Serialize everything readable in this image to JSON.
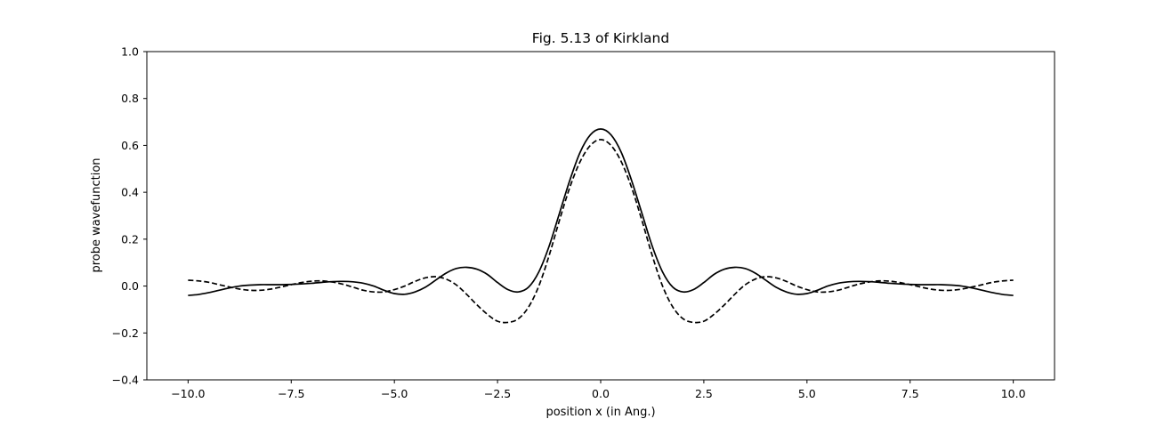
{
  "chart_data": {
    "type": "line",
    "title": "Fig. 5.13 of Kirkland",
    "xlabel": "position x (in Ang.)",
    "ylabel": "probe wavefunction",
    "xlim": [
      -11,
      11
    ],
    "ylim": [
      -0.4,
      1.0
    ],
    "xticks": [
      -10.0,
      -7.5,
      -5.0,
      -2.5,
      0.0,
      2.5,
      5.0,
      7.5,
      10.0
    ],
    "xtick_labels": [
      "−10.0",
      "−7.5",
      "−5.0",
      "−2.5",
      "0.0",
      "2.5",
      "5.0",
      "7.5",
      "10.0"
    ],
    "yticks": [
      -0.4,
      -0.2,
      0.0,
      0.2,
      0.4,
      0.6,
      0.8,
      1.0
    ],
    "ytick_labels": [
      "−0.4",
      "−0.2",
      "0.0",
      "0.2",
      "0.4",
      "0.6",
      "0.8",
      "1.0"
    ],
    "grid": false,
    "legend": "none",
    "series": [
      {
        "style": "solid",
        "color": "#000000",
        "x": [
          0,
          0.25,
          0.5,
          0.75,
          1.0,
          1.25,
          1.5,
          1.75,
          2.0,
          2.25,
          2.5,
          2.75,
          3.0,
          3.25,
          3.5,
          3.75,
          4.0,
          4.25,
          4.5,
          4.75,
          5.0,
          5.25,
          5.5,
          5.75,
          6.0,
          6.25,
          6.5,
          6.75,
          7.0,
          7.25,
          7.5,
          7.75,
          8.0,
          8.25,
          8.5,
          8.75,
          9.0,
          9.25,
          9.5,
          9.75,
          10.0
        ],
        "y": [
          0.67,
          0.645,
          0.57,
          0.45,
          0.31,
          0.17,
          0.06,
          -0.005,
          -0.025,
          -0.015,
          0.015,
          0.05,
          0.072,
          0.08,
          0.075,
          0.055,
          0.025,
          -0.005,
          -0.025,
          -0.035,
          -0.032,
          -0.018,
          0.0,
          0.012,
          0.018,
          0.02,
          0.019,
          0.016,
          0.012,
          0.009,
          0.007,
          0.006,
          0.006,
          0.006,
          0.004,
          0.0,
          -0.008,
          -0.018,
          -0.028,
          -0.036,
          -0.04
        ]
      },
      {
        "style": "dashed",
        "color": "#000000",
        "x": [
          0,
          0.25,
          0.5,
          0.75,
          1.0,
          1.25,
          1.5,
          1.75,
          2.0,
          2.25,
          2.5,
          2.75,
          3.0,
          3.25,
          3.5,
          3.75,
          4.0,
          4.25,
          4.5,
          4.75,
          5.0,
          5.25,
          5.5,
          5.75,
          6.0,
          6.25,
          6.5,
          6.75,
          7.0,
          7.25,
          7.5,
          7.75,
          8.0,
          8.25,
          8.5,
          8.75,
          9.0,
          9.25,
          9.5,
          9.75,
          10.0
        ],
        "y": [
          0.625,
          0.6,
          0.53,
          0.42,
          0.28,
          0.13,
          0.0,
          -0.09,
          -0.14,
          -0.155,
          -0.15,
          -0.12,
          -0.08,
          -0.035,
          0.005,
          0.03,
          0.04,
          0.035,
          0.02,
          0.0,
          -0.015,
          -0.025,
          -0.025,
          -0.018,
          -0.005,
          0.008,
          0.017,
          0.022,
          0.021,
          0.015,
          0.006,
          -0.004,
          -0.013,
          -0.018,
          -0.018,
          -0.013,
          -0.004,
          0.006,
          0.016,
          0.022,
          0.025
        ]
      }
    ]
  }
}
